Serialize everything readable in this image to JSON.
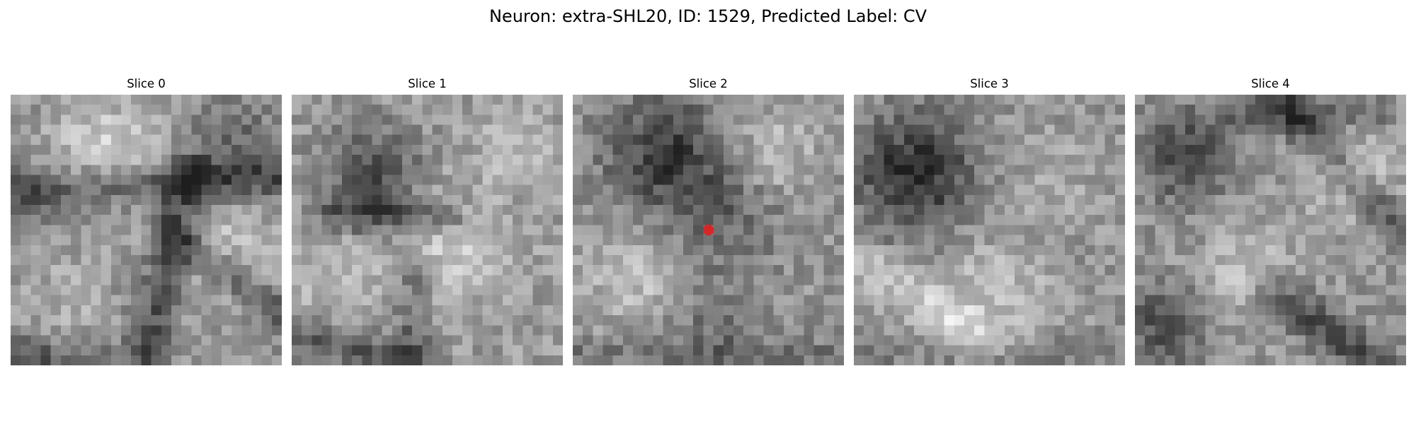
{
  "figure": {
    "title": "Neuron: extra-SHL20, ID: 1529, Predicted Label: CV"
  },
  "slices": [
    {
      "title": "Slice 0"
    },
    {
      "title": "Slice 1"
    },
    {
      "title": "Slice 2",
      "marker": true
    },
    {
      "title": "Slice 3"
    },
    {
      "title": "Slice 4"
    }
  ],
  "image": {
    "grid": 27,
    "colormap": "grayscale"
  },
  "marker_color": "#d62728"
}
